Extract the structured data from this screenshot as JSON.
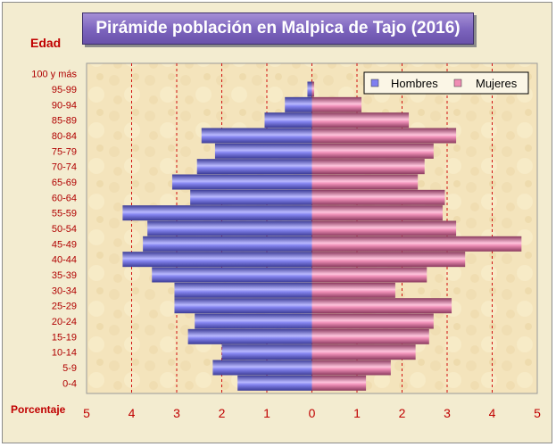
{
  "chart_data": {
    "type": "bar",
    "title": "Pirámide población en Malpica de Tajo (2016)",
    "ylabel": "Edad",
    "xlabel": "Porcentaje",
    "categories": [
      "0-4",
      "5-9",
      "10-14",
      "15-19",
      "20-24",
      "25-29",
      "30-34",
      "35-39",
      "40-44",
      "45-49",
      "50-54",
      "55-59",
      "60-64",
      "65-69",
      "70-74",
      "75-79",
      "80-84",
      "85-89",
      "90-94",
      "95-99",
      "100 y más"
    ],
    "series": [
      {
        "name": "Hombres",
        "color": "#7f7ff0",
        "values": [
          1.65,
          2.2,
          2.0,
          2.75,
          2.6,
          3.05,
          3.05,
          3.55,
          4.2,
          3.75,
          3.65,
          4.2,
          2.7,
          3.1,
          2.55,
          2.15,
          2.45,
          1.05,
          0.6,
          0.1,
          0.0
        ]
      },
      {
        "name": "Mujeres",
        "color": "#f08cb4",
        "values": [
          1.2,
          1.75,
          2.3,
          2.6,
          2.7,
          3.1,
          1.85,
          2.55,
          3.4,
          4.65,
          3.2,
          2.9,
          2.95,
          2.35,
          2.5,
          2.7,
          3.2,
          2.15,
          1.1,
          0.05,
          0.0
        ]
      }
    ],
    "xlim": [
      -5,
      5
    ],
    "xticks": [
      "5",
      "4",
      "3",
      "2",
      "1",
      "0",
      "1",
      "2",
      "3",
      "4",
      "5"
    ],
    "grid": "vertical dashed",
    "legend": "top-right"
  }
}
